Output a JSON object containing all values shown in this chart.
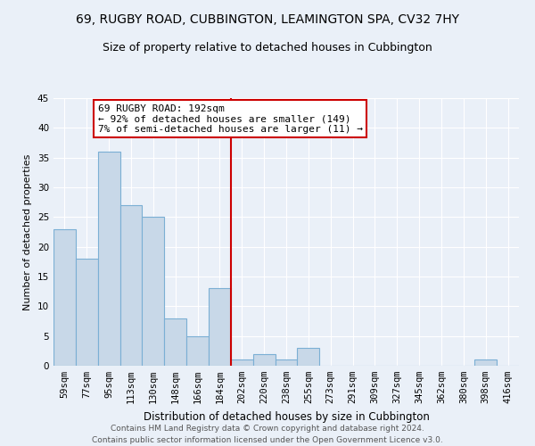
{
  "title1": "69, RUGBY ROAD, CUBBINGTON, LEAMINGTON SPA, CV32 7HY",
  "title2": "Size of property relative to detached houses in Cubbington",
  "xlabel": "Distribution of detached houses by size in Cubbington",
  "ylabel": "Number of detached properties",
  "footer1": "Contains HM Land Registry data © Crown copyright and database right 2024.",
  "footer2": "Contains public sector information licensed under the Open Government Licence v3.0.",
  "bin_labels": [
    "59sqm",
    "77sqm",
    "95sqm",
    "113sqm",
    "130sqm",
    "148sqm",
    "166sqm",
    "184sqm",
    "202sqm",
    "220sqm",
    "238sqm",
    "255sqm",
    "273sqm",
    "291sqm",
    "309sqm",
    "327sqm",
    "345sqm",
    "362sqm",
    "380sqm",
    "398sqm",
    "416sqm"
  ],
  "bar_heights": [
    23,
    18,
    36,
    27,
    25,
    8,
    5,
    13,
    1,
    2,
    1,
    3,
    0,
    0,
    0,
    0,
    0,
    0,
    0,
    1,
    0
  ],
  "bar_color": "#c8d8e8",
  "bar_edge_color": "#7bafd4",
  "vline_x": 7.5,
  "vline_color": "#cc0000",
  "annotation_title": "69 RUGBY ROAD: 192sqm",
  "annotation_line1": "← 92% of detached houses are smaller (149)",
  "annotation_line2": "7% of semi-detached houses are larger (11) →",
  "annotation_box_color": "#cc0000",
  "ylim": [
    0,
    45
  ],
  "yticks": [
    0,
    5,
    10,
    15,
    20,
    25,
    30,
    35,
    40,
    45
  ],
  "background_color": "#eaf0f8",
  "plot_background": "#eaf0f8",
  "grid_color": "#ffffff",
  "title1_fontsize": 10,
  "title2_fontsize": 9,
  "xlabel_fontsize": 8.5,
  "ylabel_fontsize": 8,
  "annotation_fontsize": 8,
  "tick_fontsize": 7.5,
  "footer_fontsize": 6.5
}
